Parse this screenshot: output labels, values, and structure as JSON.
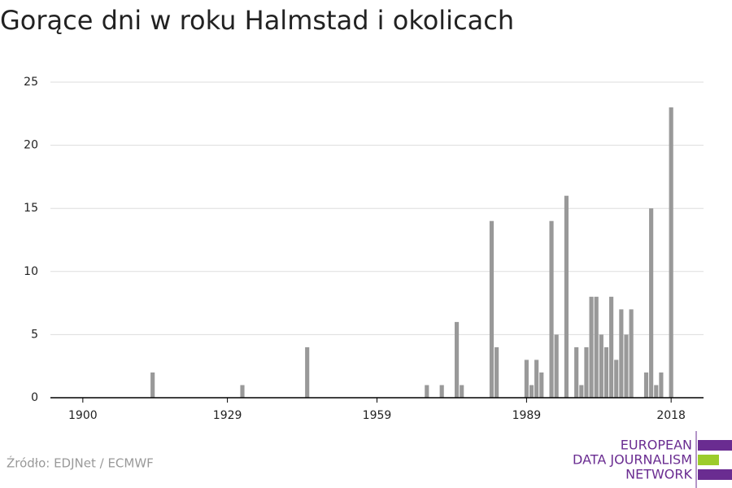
{
  "chart_data": {
    "type": "bar",
    "title": "Gorące dni w roku Halmstad i okolicach",
    "x": [
      1914,
      1932,
      1945,
      1969,
      1972,
      1975,
      1976,
      1982,
      1983,
      1989,
      1990,
      1991,
      1992,
      1994,
      1995,
      1997,
      1999,
      2000,
      2001,
      2002,
      2003,
      2004,
      2005,
      2006,
      2007,
      2008,
      2009,
      2010,
      2013,
      2014,
      2015,
      2016,
      2018
    ],
    "values": [
      2,
      1,
      4,
      1,
      1,
      6,
      1,
      14,
      4,
      3,
      1,
      3,
      2,
      14,
      5,
      16,
      4,
      1,
      4,
      8,
      8,
      5,
      4,
      8,
      3,
      7,
      5,
      7,
      2,
      15,
      1,
      2,
      23
    ],
    "color": "#999999",
    "xlim": [
      1893.5,
      2024.5
    ],
    "xticks": [
      1900,
      1929,
      1959,
      1989,
      2018
    ],
    "ylim": [
      0,
      25
    ],
    "yticks": [
      0,
      5,
      10,
      15,
      20,
      25
    ],
    "grid": true,
    "source": "Źródło: EDJNet / ECMWF"
  },
  "logo": {
    "lines": [
      "EUROPEAN",
      "DATA JOURNALISM",
      "NETWORK"
    ]
  }
}
